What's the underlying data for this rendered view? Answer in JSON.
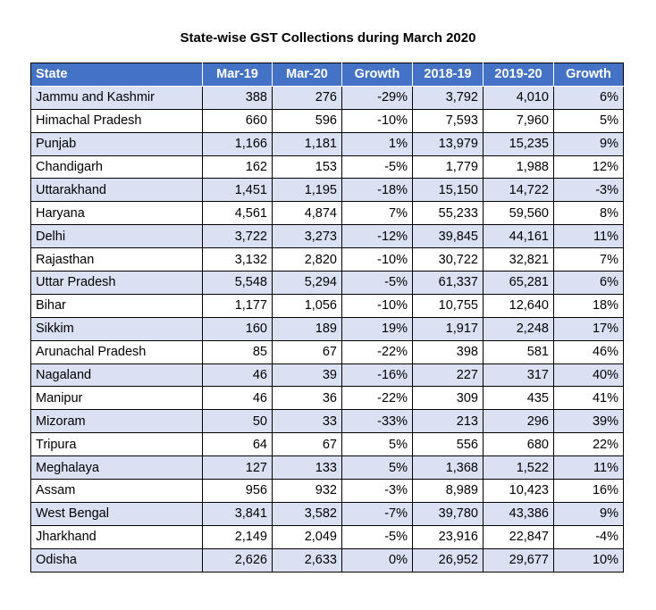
{
  "title": "State-wise GST Collections during March 2020",
  "table": {
    "headers": [
      "State",
      "Mar-19",
      "Mar-20",
      "Growth",
      "2018-19",
      "2019-20",
      "Growth"
    ],
    "rows": [
      [
        "Jammu and Kashmir",
        "388",
        "276",
        "-29%",
        "3,792",
        "4,010",
        "6%"
      ],
      [
        "Himachal Pradesh",
        "660",
        "596",
        "-10%",
        "7,593",
        "7,960",
        "5%"
      ],
      [
        "Punjab",
        "1,166",
        "1,181",
        "1%",
        "13,979",
        "15,235",
        "9%"
      ],
      [
        "Chandigarh",
        "162",
        "153",
        "-5%",
        "1,779",
        "1,988",
        "12%"
      ],
      [
        "Uttarakhand",
        "1,451",
        "1,195",
        "-18%",
        "15,150",
        "14,722",
        "-3%"
      ],
      [
        "Haryana",
        "4,561",
        "4,874",
        "7%",
        "55,233",
        "59,560",
        "8%"
      ],
      [
        "Delhi",
        "3,722",
        "3,273",
        "-12%",
        "39,845",
        "44,161",
        "11%"
      ],
      [
        "Rajasthan",
        "3,132",
        "2,820",
        "-10%",
        "30,722",
        "32,821",
        "7%"
      ],
      [
        "Uttar Pradesh",
        "5,548",
        "5,294",
        "-5%",
        "61,337",
        "65,281",
        "6%"
      ],
      [
        "Bihar",
        "1,177",
        "1,056",
        "-10%",
        "10,755",
        "12,640",
        "18%"
      ],
      [
        "Sikkim",
        "160",
        "189",
        "19%",
        "1,917",
        "2,248",
        "17%"
      ],
      [
        "Arunachal Pradesh",
        "85",
        "67",
        "-22%",
        "398",
        "581",
        "46%"
      ],
      [
        "Nagaland",
        "46",
        "39",
        "-16%",
        "227",
        "317",
        "40%"
      ],
      [
        "Manipur",
        "46",
        "36",
        "-22%",
        "309",
        "435",
        "41%"
      ],
      [
        "Mizoram",
        "50",
        "33",
        "-33%",
        "213",
        "296",
        "39%"
      ],
      [
        "Tripura",
        "64",
        "67",
        "5%",
        "556",
        "680",
        "22%"
      ],
      [
        "Meghalaya",
        "127",
        "133",
        "5%",
        "1,368",
        "1,522",
        "11%"
      ],
      [
        "Assam",
        "956",
        "932",
        "-3%",
        "8,989",
        "10,423",
        "16%"
      ],
      [
        "West Bengal",
        "3,841",
        "3,582",
        "-7%",
        "39,780",
        "43,386",
        "9%"
      ],
      [
        "Jharkhand",
        "2,149",
        "2,049",
        "-5%",
        "23,916",
        "22,847",
        "-4%"
      ],
      [
        "Odisha",
        "2,626",
        "2,633",
        "0%",
        "26,952",
        "29,677",
        "10%"
      ]
    ]
  },
  "colors": {
    "header_bg": "#4472c4",
    "header_text": "#ffffff",
    "band_row": "#d9e1f2",
    "plain_row": "#ffffff"
  }
}
